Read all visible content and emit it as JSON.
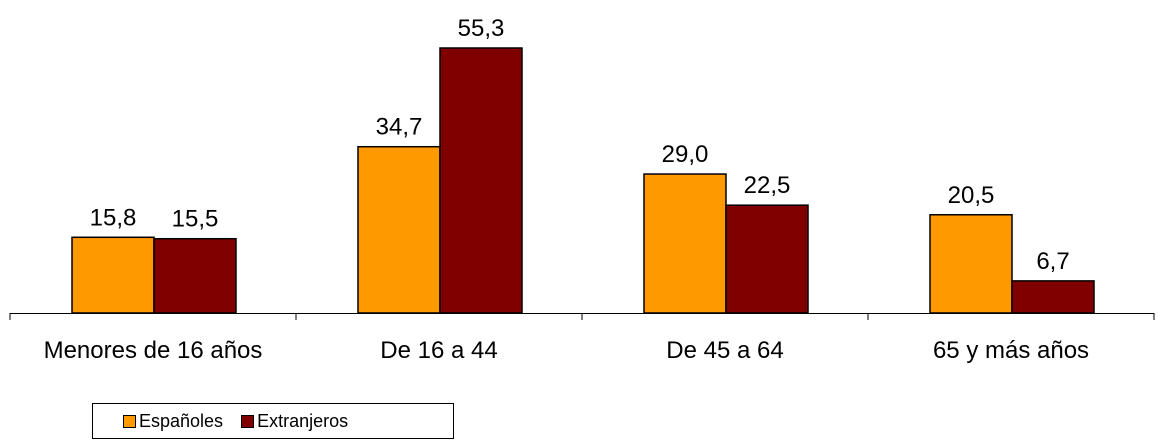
{
  "chart_data": {
    "type": "bar",
    "categories": [
      "Menores de 16 años",
      "De 16 a 44",
      "De 45 a 64",
      "65 y más años"
    ],
    "series": [
      {
        "name": "Españoles",
        "values": [
          15.8,
          34.7,
          29.0,
          20.5
        ],
        "labels": [
          "15,8",
          "34,7",
          "29,0",
          "20,5"
        ],
        "color": "#FF9900"
      },
      {
        "name": "Extranjeros",
        "values": [
          15.5,
          55.3,
          22.5,
          6.7
        ],
        "labels": [
          "15,5",
          "55,3",
          "22,5",
          "6,7"
        ],
        "color": "#800000"
      }
    ],
    "ylim": [
      0,
      60
    ],
    "grid": false,
    "legend_position": "bottom-left"
  }
}
